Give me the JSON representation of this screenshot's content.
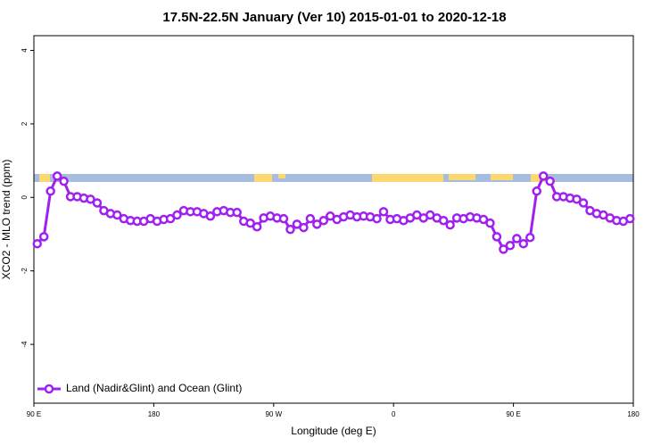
{
  "chart_data": {
    "type": "line",
    "title": "17.5N-22.5N January (Ver 10)   2015-01-01 to 2020-12-18",
    "x_label": "Longitude (deg E)",
    "y_label": "XCO2 - MLO trend (ppm)",
    "xlim": [
      90,
      540
    ],
    "ylim": [
      -5.6,
      4.4
    ],
    "xticks": [
      {
        "value": 90,
        "label": "90 E"
      },
      {
        "value": 180,
        "label": "180"
      },
      {
        "value": 270,
        "label": "90 W"
      },
      {
        "value": 360,
        "label": "0"
      },
      {
        "value": 450,
        "label": "90 E"
      },
      {
        "value": 540,
        "label": "180"
      }
    ],
    "yticks": [
      -4,
      -2,
      0,
      2,
      4
    ],
    "legend_position": "bottom-left",
    "x": [
      92.5,
      97.5,
      102.5,
      107.5,
      112.5,
      117.5,
      122.5,
      127.5,
      132.5,
      137.5,
      142.5,
      147.5,
      152.5,
      157.5,
      162.5,
      167.5,
      172.5,
      177.5,
      182.5,
      187.5,
      192.5,
      197.5,
      202.5,
      207.5,
      212.5,
      217.5,
      222.5,
      227.5,
      232.5,
      237.5,
      242.5,
      247.5,
      252.5,
      257.5,
      262.5,
      267.5,
      272.5,
      277.5,
      282.5,
      287.5,
      292.5,
      297.5,
      302.5,
      307.5,
      312.5,
      317.5,
      322.5,
      327.5,
      332.5,
      337.5,
      342.5,
      347.5,
      352.5,
      357.5,
      362.5,
      367.5,
      372.5,
      377.5,
      382.5,
      387.5,
      392.5,
      397.5,
      402.5,
      407.5,
      412.5,
      417.5,
      422.5,
      427.5,
      432.5,
      437.5,
      442.5,
      447.5,
      452.5,
      457.5,
      462.5,
      467.5,
      472.5,
      477.5,
      482.5,
      487.5,
      492.5,
      497.5,
      502.5,
      507.5,
      512.5,
      517.5,
      522.5,
      527.5,
      532.5,
      537.5
    ],
    "series": [
      {
        "name": "Land (Nadir&Glint) and Ocean (Glint)",
        "color": "#a020f0",
        "values": [
          -1.26,
          -1.07,
          0.17,
          0.58,
          0.44,
          0.02,
          0.02,
          -0.02,
          -0.05,
          -0.15,
          -0.36,
          -0.44,
          -0.48,
          -0.58,
          -0.63,
          -0.65,
          -0.65,
          -0.58,
          -0.65,
          -0.6,
          -0.58,
          -0.48,
          -0.36,
          -0.39,
          -0.39,
          -0.44,
          -0.51,
          -0.39,
          -0.36,
          -0.41,
          -0.41,
          -0.65,
          -0.7,
          -0.8,
          -0.56,
          -0.51,
          -0.56,
          -0.58,
          -0.87,
          -0.73,
          -0.82,
          -0.58,
          -0.73,
          -0.63,
          -0.51,
          -0.6,
          -0.53,
          -0.48,
          -0.53,
          -0.51,
          -0.53,
          -0.58,
          -0.39,
          -0.6,
          -0.58,
          -0.63,
          -0.56,
          -0.48,
          -0.56,
          -0.48,
          -0.56,
          -0.63,
          -0.75,
          -0.56,
          -0.58,
          -0.53,
          -0.56,
          -0.6,
          -0.7,
          -1.07,
          -1.41,
          -1.31,
          -1.12,
          -1.26,
          -1.09,
          0.17,
          0.58,
          0.44,
          0.02,
          0.02,
          -0.02,
          -0.05,
          -0.15,
          -0.36,
          -0.44,
          -0.48,
          -0.56,
          -0.63,
          -0.65,
          -0.58
        ]
      }
    ]
  }
}
